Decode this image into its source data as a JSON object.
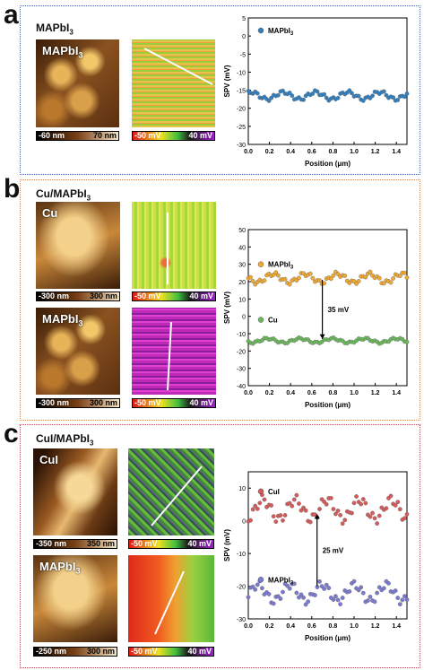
{
  "panels": {
    "a": {
      "letter": "a",
      "title_main": "MAPbI",
      "title_sub": "3",
      "topo": {
        "label_main": "MAPbI",
        "label_sub": "3",
        "scale_low": "-60 nm",
        "scale_high": "70 nm"
      },
      "spv": {
        "scale_low": "-50 mV",
        "scale_high": "40 mV"
      }
    },
    "b": {
      "letter": "b",
      "title_main": "Cu/MAPbI",
      "title_sub": "3",
      "topo1": {
        "label_main": "Cu",
        "label_sub": "",
        "scale_low": "-300 nm",
        "scale_high": "300 nm"
      },
      "spv1": {
        "scale_low": "-50 mV",
        "scale_high": "40 mV"
      },
      "topo2": {
        "label_main": "MAPbI",
        "label_sub": "3",
        "scale_low": "-300 nm",
        "scale_high": "300 nm"
      },
      "spv2": {
        "scale_low": "-50 mV",
        "scale_high": "40 mV"
      }
    },
    "c": {
      "letter": "c",
      "title_main": "CuI/MAPbI",
      "title_sub": "3",
      "topo1": {
        "label_main": "CuI",
        "label_sub": "",
        "scale_low": "-350 nm",
        "scale_high": "350 nm"
      },
      "spv1": {
        "scale_low": "-50 mV",
        "scale_high": "40 mV"
      },
      "topo2": {
        "label_main": "MAPbI",
        "label_sub": "3",
        "scale_low": "-250 nm",
        "scale_high": "300 nm"
      },
      "spv2": {
        "scale_low": "-50 mV",
        "scale_high": "40 mV"
      }
    }
  },
  "chart_data": [
    {
      "type": "scatter",
      "panel": "a",
      "xlabel": "Position (μm)",
      "ylabel": "SPV (mV)",
      "xlim": [
        0.0,
        1.5
      ],
      "ylim": [
        -30,
        5
      ],
      "xticks": [
        "0.0",
        "0.2",
        "0.4",
        "0.6",
        "0.8",
        "1.0",
        "1.2",
        "1.4"
      ],
      "yticks": [
        "-30",
        "-25",
        "-20",
        "-15",
        "-10",
        "-5",
        "0",
        "5"
      ],
      "legend_position": "top-left",
      "series": [
        {
          "name": "MAPbI3",
          "legend_main": "MAPbI",
          "legend_sub": "3",
          "color": "#2f7fc1",
          "y_base": -16.5,
          "y_amp": 1.0,
          "wave": 1
        }
      ],
      "annotation": null
    },
    {
      "type": "scatter",
      "panel": "b",
      "xlabel": "Position (μm)",
      "ylabel": "SPV (mV)",
      "xlim": [
        0.0,
        1.5
      ],
      "ylim": [
        -40,
        50
      ],
      "xticks": [
        "0.0",
        "0.2",
        "0.4",
        "0.6",
        "0.8",
        "1.0",
        "1.2",
        "1.4"
      ],
      "yticks": [
        "-40",
        "-30",
        "-20",
        "-10",
        "0",
        "10",
        "20",
        "30",
        "40",
        "50"
      ],
      "series": [
        {
          "name": "MAPbI3",
          "legend_main": "MAPbI",
          "legend_sub": "3",
          "color": "#f0a830",
          "y_base": 22,
          "y_amp": 2.5,
          "wave": 3,
          "legend_y": 30
        },
        {
          "name": "Cu",
          "legend_main": "Cu",
          "legend_sub": "",
          "color": "#6ab85a",
          "y_base": -14,
          "y_amp": 1.2,
          "wave": 4,
          "legend_y": -2
        }
      ],
      "annotation": {
        "label": "35 mV",
        "x": 0.7,
        "y_from": 21,
        "y_to": -13
      }
    },
    {
      "type": "scatter",
      "panel": "c",
      "xlabel": "Position (μm)",
      "ylabel": "SPV (mV)",
      "xlim": [
        0.0,
        1.5
      ],
      "ylim": [
        -30,
        15
      ],
      "xticks": [
        "0.0",
        "0.2",
        "0.4",
        "0.6",
        "0.8",
        "1.0",
        "1.2",
        "1.4"
      ],
      "yticks": [
        "-30",
        "-20",
        "-10",
        "0",
        "10"
      ],
      "series": [
        {
          "name": "CuI",
          "legend_main": "CuI",
          "legend_sub": "",
          "color": "#d65a5a",
          "y_base": 3.5,
          "y_amp": 3.0,
          "wave": 5,
          "legend_y": 9
        },
        {
          "name": "MAPbI3",
          "legend_main": "MAPbI",
          "legend_sub": "3",
          "color": "#7a7ad0",
          "y_base": -22,
          "y_amp": 2.5,
          "wave": 6,
          "legend_y": -18
        }
      ],
      "annotation": {
        "label": "25 mV",
        "x": 0.65,
        "y_from": -20,
        "y_to": 2
      }
    }
  ]
}
